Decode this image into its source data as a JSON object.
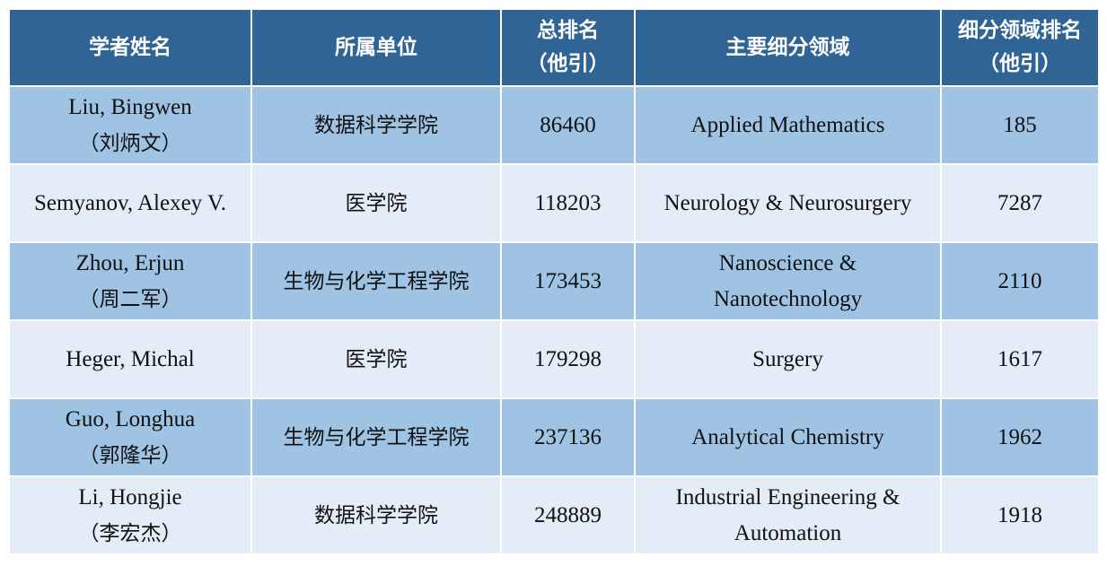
{
  "table": {
    "headers": [
      {
        "line1": "学者姓名",
        "line2": ""
      },
      {
        "line1": "所属单位",
        "line2": ""
      },
      {
        "line1": "总排名",
        "line2": "（他引）"
      },
      {
        "line1": "主要细分领域",
        "line2": ""
      },
      {
        "line1": "细分领域排名",
        "line2": "（他引）"
      }
    ],
    "rows": [
      {
        "name": "Liu, Bingwen",
        "name_cn": "（刘炳文）",
        "unit": "数据科学学院",
        "rank": "86460",
        "field1": "Applied Mathematics",
        "field2": "",
        "field_rank": "185"
      },
      {
        "name": "Semyanov, Alexey V.",
        "name_cn": "",
        "unit": "医学院",
        "rank": "118203",
        "field1": "Neurology & Neurosurgery",
        "field2": "",
        "field_rank": "7287"
      },
      {
        "name": "Zhou, Erjun",
        "name_cn": "（周二军）",
        "unit": "生物与化学工程学院",
        "rank": "173453",
        "field1": "Nanoscience &",
        "field2": "Nanotechnology",
        "field_rank": "2110"
      },
      {
        "name": "Heger, Michal",
        "name_cn": "",
        "unit": "医学院",
        "rank": "179298",
        "field1": "Surgery",
        "field2": "",
        "field_rank": "1617"
      },
      {
        "name": "Guo, Longhua",
        "name_cn": "（郭隆华）",
        "unit": "生物与化学工程学院",
        "rank": "237136",
        "field1": "Analytical Chemistry",
        "field2": "",
        "field_rank": "1962"
      },
      {
        "name": "Li, Hongjie",
        "name_cn": "（李宏杰）",
        "unit": "数据科学学院",
        "rank": "248889",
        "field1": "Industrial Engineering &",
        "field2": "Automation",
        "field_rank": "1918"
      }
    ]
  },
  "colors": {
    "header": "#2f6494",
    "row_odd": "#9fc3e3",
    "row_even": "#e4ecf7"
  }
}
